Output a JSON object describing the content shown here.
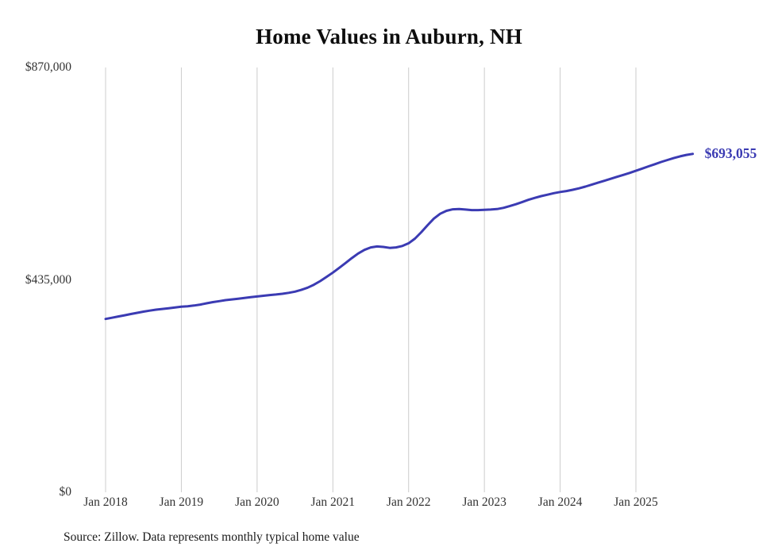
{
  "chart": {
    "title": "Home Values in Auburn, NH",
    "end_label": "$693,055",
    "source_note": "Source: Zillow. Data represents monthly typical home value",
    "colors": {
      "line": "#3b3bb3",
      "end_label": "#3b3bb3",
      "gridline": "#cccccc",
      "axis_text": "#333333",
      "title_text": "#0d0d0d",
      "background": "#ffffff"
    },
    "y_ticks": [
      {
        "label": "$0",
        "value": 0
      },
      {
        "label": "$435,000",
        "value": 435000
      },
      {
        "label": "$870,000",
        "value": 870000
      }
    ],
    "x_ticks": [
      "Jan 2018",
      "Jan 2019",
      "Jan 2020",
      "Jan 2021",
      "Jan 2022",
      "Jan 2023",
      "Jan 2024",
      "Jan 2025"
    ]
  },
  "chart_data": {
    "type": "line",
    "title": "Home Values in Auburn, NH",
    "series_name": "Monthly typical home value",
    "unit": "USD",
    "interval": "monthly",
    "x_start": "2018-01",
    "x_end": "2025-10",
    "ylim": [
      0,
      870000
    ],
    "grid": "vertical-only",
    "legend": "none",
    "final_value": 693055,
    "values": [
      355000,
      357500,
      360000,
      362500,
      365000,
      367500,
      370000,
      372000,
      374000,
      375500,
      377000,
      378500,
      380000,
      381000,
      382500,
      384500,
      387000,
      389500,
      391500,
      393500,
      395000,
      396500,
      398000,
      399500,
      401000,
      402500,
      404000,
      405000,
      406500,
      408500,
      411000,
      414500,
      419000,
      425000,
      432500,
      441000,
      450000,
      459500,
      469500,
      479500,
      489000,
      496500,
      501500,
      503500,
      502500,
      500500,
      501500,
      504500,
      510000,
      519500,
      532500,
      547000,
      560500,
      570500,
      576500,
      579500,
      580000,
      579000,
      578000,
      578000,
      578500,
      579000,
      580000,
      582500,
      586000,
      590000,
      594500,
      599000,
      603000,
      606500,
      609500,
      612500,
      615000,
      617000,
      619500,
      622500,
      626000,
      630000,
      634000,
      638000,
      642000,
      646000,
      650000,
      654000,
      658500,
      663000,
      667500,
      672000,
      676500,
      680500,
      684500,
      688000,
      691000,
      693055
    ]
  }
}
